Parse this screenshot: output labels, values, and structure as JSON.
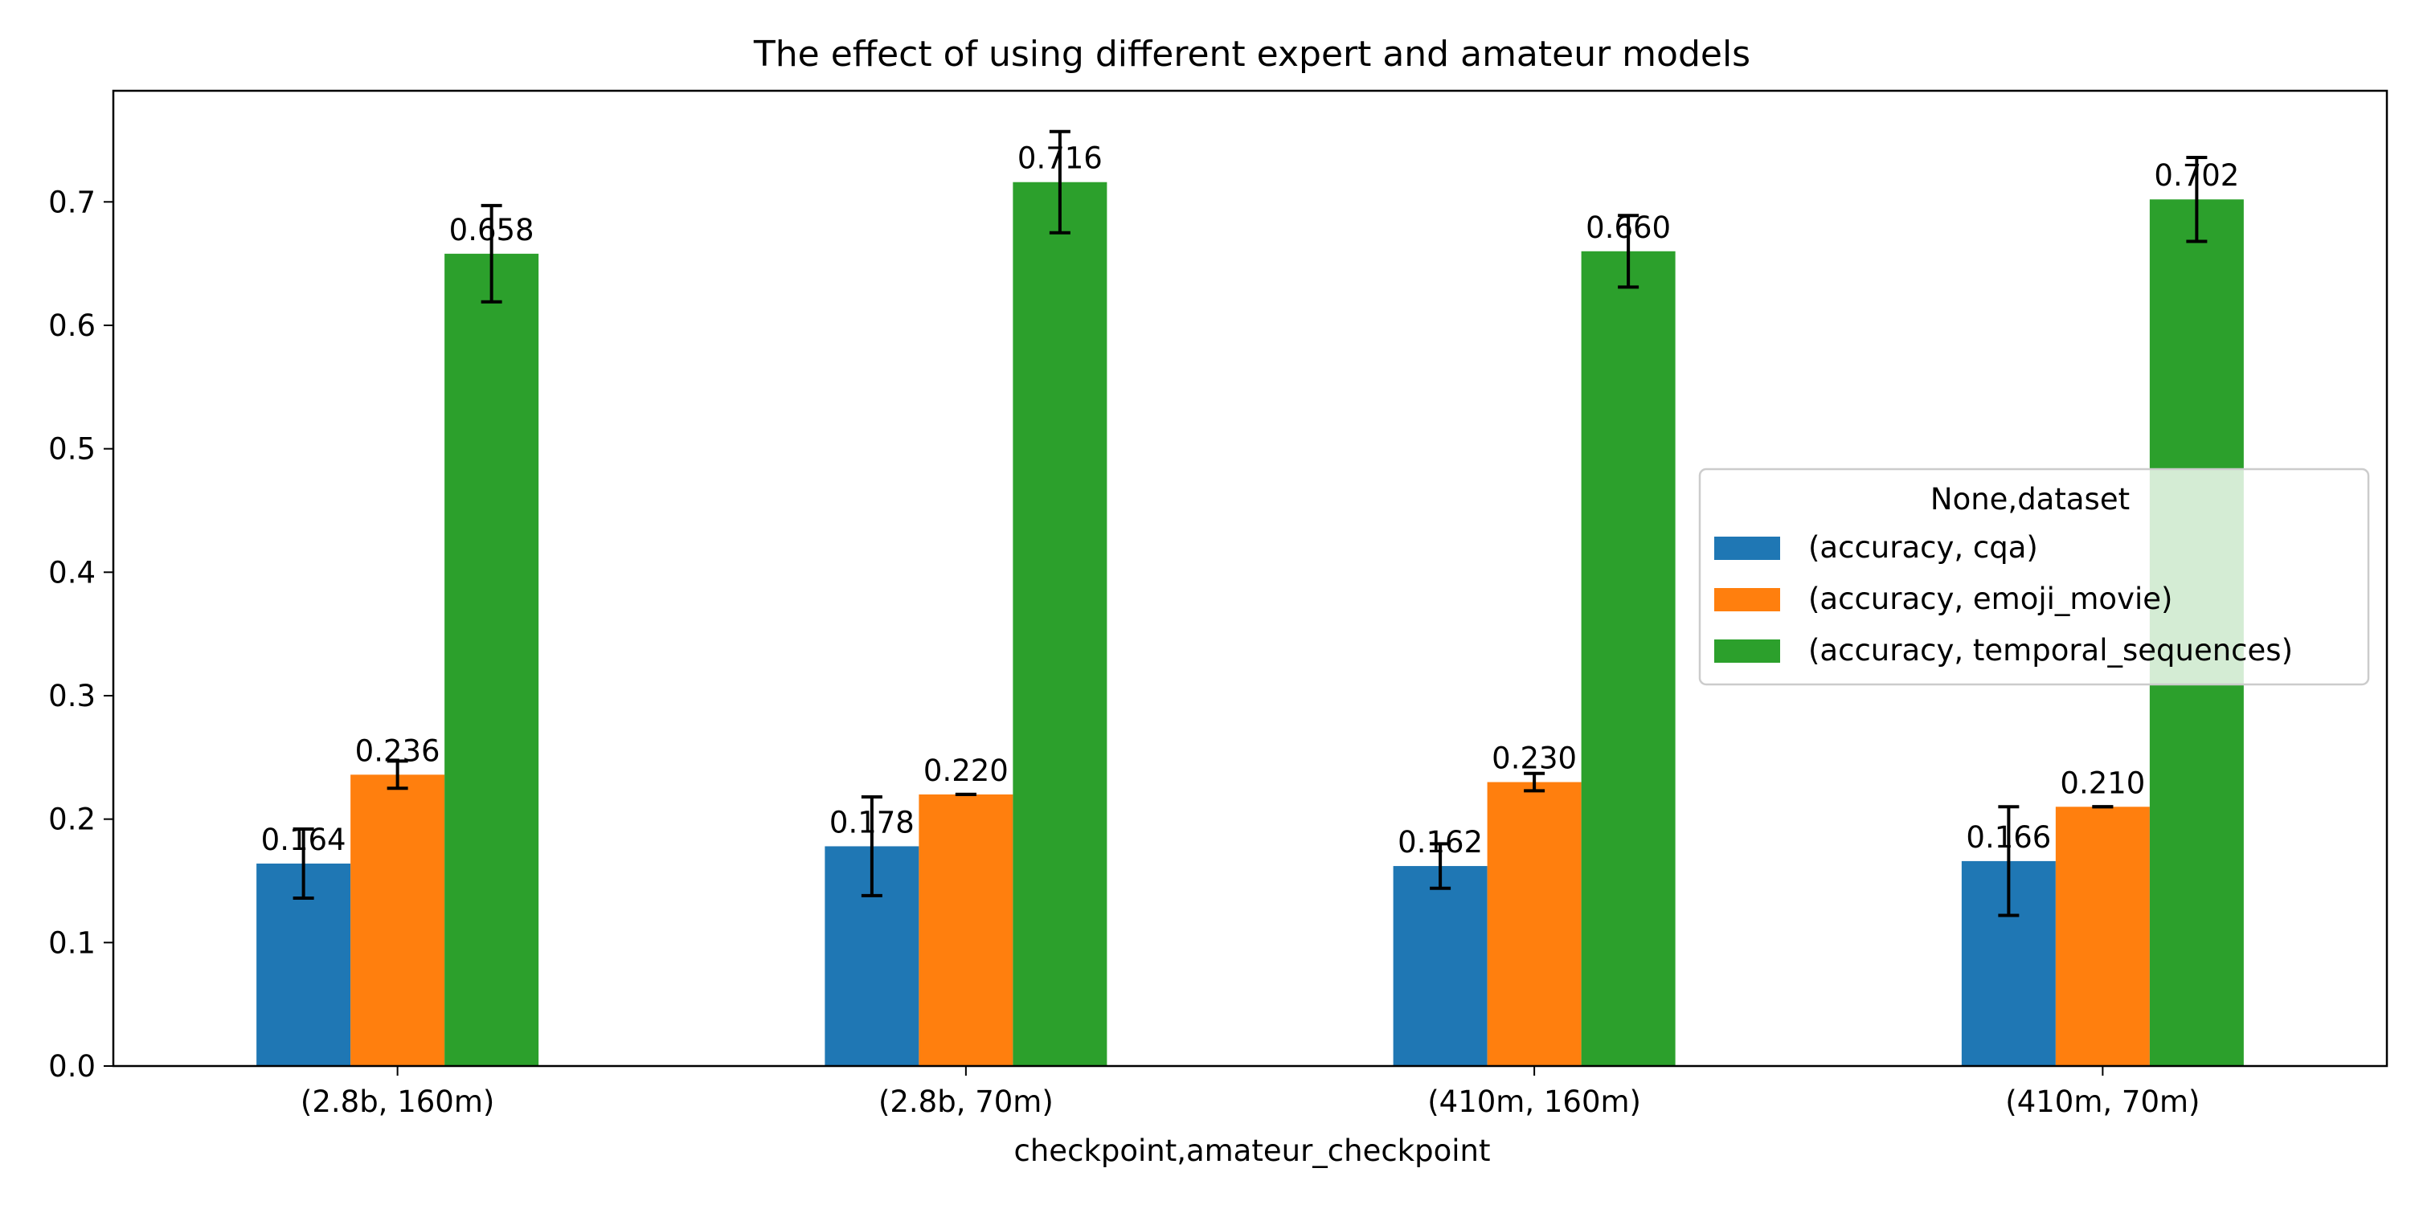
{
  "chart_data": {
    "type": "bar",
    "title": "The effect of using different expert and amateur models",
    "xlabel": "checkpoint,amateur_checkpoint",
    "ylabel": "",
    "ylim": [
      0,
      0.79
    ],
    "yticks": [
      0.0,
      0.1,
      0.2,
      0.3,
      0.4,
      0.5,
      0.6,
      0.7
    ],
    "ytick_labels": [
      "0.0",
      "0.1",
      "0.2",
      "0.3",
      "0.4",
      "0.5",
      "0.6",
      "0.7"
    ],
    "categories": [
      "(2.8b, 160m)",
      "(2.8b, 70m)",
      "(410m, 160m)",
      "(410m, 70m)"
    ],
    "legend": {
      "title": "None,dataset",
      "placement": "center-right"
    },
    "grid": false,
    "series": [
      {
        "name": "(accuracy, cqa)",
        "color": "#1f77b4",
        "values": [
          0.164,
          0.178,
          0.162,
          0.166
        ],
        "errors": [
          0.028,
          0.04,
          0.018,
          0.044
        ],
        "labels": [
          "0.164",
          "0.178",
          "0.162",
          "0.166"
        ]
      },
      {
        "name": "(accuracy, emoji_movie)",
        "color": "#ff7f0e",
        "values": [
          0.236,
          0.22,
          0.23,
          0.21
        ],
        "errors": [
          0.011,
          0.0,
          0.007,
          0.0
        ],
        "labels": [
          "0.236",
          "0.220",
          "0.230",
          "0.210"
        ]
      },
      {
        "name": "(accuracy, temporal_sequences)",
        "color": "#2ca02c",
        "values": [
          0.658,
          0.716,
          0.66,
          0.702
        ],
        "errors": [
          0.039,
          0.041,
          0.029,
          0.034
        ],
        "labels": [
          "0.658",
          "0.716",
          "0.660",
          "0.702"
        ]
      }
    ]
  }
}
